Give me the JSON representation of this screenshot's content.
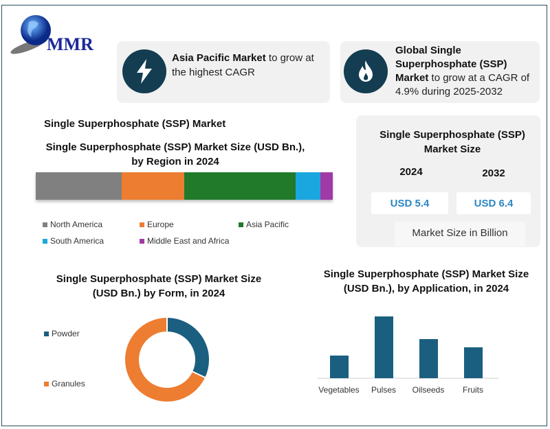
{
  "logo": {
    "text": "MMR"
  },
  "highlights": [
    {
      "icon": "lightning-icon",
      "bold": "Asia Pacific Market",
      "rest": " to grow at the highest CAGR"
    },
    {
      "icon": "flame-icon",
      "bold": "Global Single Superphosphate (SSP) Market",
      "rest": " to grow at a CAGR of 4.9% during 2025-2032"
    }
  ],
  "section_title": "Single Superphosphate (SSP) Market",
  "market_size": {
    "title": "Single Superphosphate (SSP) Market Size",
    "years": [
      "2024",
      "2032"
    ],
    "values": [
      "USD 5.4",
      "USD 6.4"
    ],
    "footer": "Market Size in Billion"
  },
  "colors": {
    "dark": "#143d52",
    "teal": "#1a5f80",
    "orange": "#ed7d31"
  },
  "chart_data": [
    {
      "type": "bar",
      "stacked": true,
      "title": "Single Superphosphate (SSP) Market Size (USD Bn.), by Region in 2024",
      "series": [
        {
          "name": "North America",
          "value": 29,
          "color": "#808080"
        },
        {
          "name": "Europe",
          "value": 21,
          "color": "#ed7d31"
        },
        {
          "name": "Asia Pacific",
          "value": 37.5,
          "color": "#217a2a"
        },
        {
          "name": "South America",
          "value": 8.3,
          "color": "#1aa7e0"
        },
        {
          "name": "Middle East and Africa",
          "value": 4.2,
          "color": "#a03aa6"
        }
      ],
      "legend": "bottom"
    },
    {
      "type": "pie",
      "donut": true,
      "title": "Single Superphosphate (SSP) Market Size (USD Bn.) by Form, in 2024",
      "slices": [
        {
          "name": "Powder",
          "value": 32,
          "color": "#1a5f80"
        },
        {
          "name": "Granules",
          "value": 68,
          "color": "#ed7d31"
        }
      ],
      "legend": "left"
    },
    {
      "type": "bar",
      "title": "Single Superphosphate (SSP) Market Size (USD Bn.), by Application, in 2024",
      "categories": [
        "Vegetables",
        "Pulses",
        "Oilseeds",
        "Fruits"
      ],
      "values": [
        33,
        90,
        57,
        45
      ],
      "color": "#1a5f80"
    }
  ]
}
